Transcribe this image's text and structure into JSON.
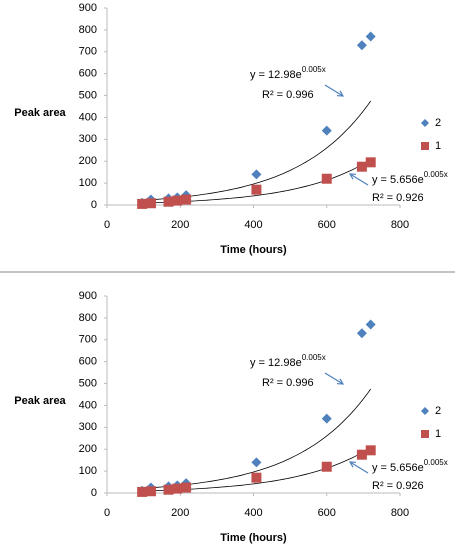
{
  "chart_data": [
    {
      "type": "scatter",
      "y_label": "Peak area",
      "x_label": "Time (hours)",
      "xlim": [
        0,
        800
      ],
      "xticks": [
        0,
        200,
        400,
        600,
        800
      ],
      "ylim": [
        0,
        900
      ],
      "yticks": [
        0,
        100,
        200,
        300,
        400,
        500,
        600,
        700,
        800,
        900
      ],
      "series": [
        {
          "name": "2",
          "color": "#4f81bd",
          "marker": "diamond",
          "x": [
            96,
            120,
            168,
            192,
            216,
            408,
            600,
            696,
            720
          ],
          "values": [
            10,
            25,
            30,
            35,
            45,
            140,
            340,
            730,
            770
          ]
        },
        {
          "name": "1",
          "color": "#c0504d",
          "marker": "square",
          "x": [
            96,
            120,
            168,
            192,
            216,
            408,
            600,
            696,
            720
          ],
          "values": [
            5,
            8,
            15,
            20,
            25,
            70,
            120,
            175,
            195
          ]
        }
      ],
      "trendlines": [
        {
          "eq_prefix": "y = ",
          "a": 12.98,
          "eq_base": "e",
          "b": 0.005,
          "eq_var": "x",
          "r2": "R² = 0.996"
        },
        {
          "eq_prefix": "y = ",
          "a": 5.656,
          "eq_base": "e",
          "b": 0.005,
          "eq_var": "x",
          "r2": "R² = 0.926"
        }
      ]
    },
    {
      "type": "scatter",
      "y_label": "Peak area",
      "x_label": "Time (hours)",
      "xlim": [
        0,
        800
      ],
      "xticks": [
        0,
        200,
        400,
        600,
        800
      ],
      "ylim": [
        0,
        900
      ],
      "yticks": [
        0,
        100,
        200,
        300,
        400,
        500,
        600,
        700,
        800,
        900
      ],
      "series": [
        {
          "name": "2",
          "color": "#4f81bd",
          "marker": "diamond",
          "x": [
            96,
            120,
            168,
            192,
            216,
            408,
            600,
            696,
            720
          ],
          "values": [
            10,
            25,
            30,
            35,
            45,
            140,
            340,
            730,
            770
          ]
        },
        {
          "name": "1",
          "color": "#c0504d",
          "marker": "square",
          "x": [
            96,
            120,
            168,
            192,
            216,
            408,
            600,
            696,
            720
          ],
          "values": [
            5,
            8,
            15,
            20,
            25,
            70,
            120,
            175,
            195
          ]
        }
      ],
      "trendlines": [
        {
          "eq_prefix": "y = ",
          "a": 12.98,
          "eq_base": "e",
          "b": 0.005,
          "eq_var": "x",
          "r2": "R² = 0.996"
        },
        {
          "eq_prefix": "y = ",
          "a": 5.656,
          "eq_base": "e",
          "b": 0.005,
          "eq_var": "x",
          "r2": "R² = 0.926"
        }
      ]
    }
  ]
}
